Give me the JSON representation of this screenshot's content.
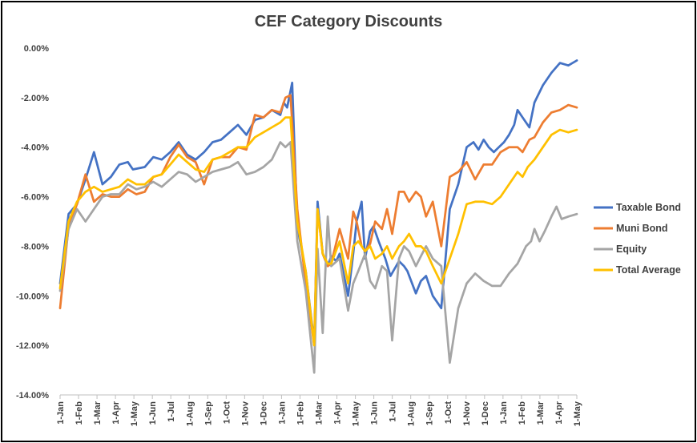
{
  "chart_data": {
    "type": "line",
    "title": "CEF Category Discounts",
    "xlabel": "",
    "ylabel": "",
    "ylim": [
      -0.14,
      0.0
    ],
    "y_ticks": [
      "0.00%",
      "-2.00%",
      "-4.00%",
      "-6.00%",
      "-8.00%",
      "-10.00%",
      "-12.00%",
      "-14.00%"
    ],
    "x_tick_labels": [
      "1-Jan",
      "1-Feb",
      "1-Mar",
      "1-Apr",
      "1-May",
      "1-Jun",
      "1-Jul",
      "1-Aug",
      "1-Sep",
      "1-Oct",
      "1-Nov",
      "1-Dec",
      "1-Jan",
      "1-Feb",
      "1-Mar",
      "1-Apr",
      "1-May",
      "1-Jun",
      "1-Jul",
      "1-Aug",
      "1-Sep",
      "1-Oct",
      "1-Nov",
      "1-Dec",
      "1-Jan",
      "1-Feb",
      "1-Mar",
      "1-Apr",
      "1-May"
    ],
    "grid": false,
    "legend_position": "right",
    "series": [
      {
        "name": "Taxable Bond",
        "color": "#4472C4",
        "points": [
          [
            0,
            -0.095
          ],
          [
            0.5,
            -0.067
          ],
          [
            1,
            -0.063
          ],
          [
            1.5,
            -0.053
          ],
          [
            2,
            -0.042
          ],
          [
            2.5,
            -0.055
          ],
          [
            3,
            -0.052
          ],
          [
            3.5,
            -0.047
          ],
          [
            4,
            -0.046
          ],
          [
            4.3,
            -0.049
          ],
          [
            5,
            -0.048
          ],
          [
            5.5,
            -0.044
          ],
          [
            6,
            -0.045
          ],
          [
            6.5,
            -0.042
          ],
          [
            7,
            -0.038
          ],
          [
            7.5,
            -0.043
          ],
          [
            8,
            -0.045
          ],
          [
            8.5,
            -0.042
          ],
          [
            9,
            -0.038
          ],
          [
            9.5,
            -0.037
          ],
          [
            10,
            -0.034
          ],
          [
            10.5,
            -0.031
          ],
          [
            11,
            -0.035
          ],
          [
            11.5,
            -0.029
          ],
          [
            12,
            -0.028
          ],
          [
            12.5,
            -0.025
          ],
          [
            13,
            -0.027
          ],
          [
            13.2,
            -0.022
          ],
          [
            13.4,
            -0.024
          ],
          [
            13.7,
            -0.014
          ],
          [
            14,
            -0.072
          ],
          [
            14.5,
            -0.09
          ],
          [
            15,
            -0.119
          ],
          [
            15.2,
            -0.062
          ],
          [
            15.5,
            -0.083
          ],
          [
            15.8,
            -0.088
          ],
          [
            16,
            -0.084
          ],
          [
            16.3,
            -0.086
          ],
          [
            16.5,
            -0.083
          ],
          [
            17,
            -0.1
          ],
          [
            17.3,
            -0.083
          ],
          [
            17.5,
            -0.07
          ],
          [
            17.8,
            -0.062
          ],
          [
            18,
            -0.085
          ],
          [
            18.3,
            -0.074
          ],
          [
            18.5,
            -0.072
          ],
          [
            18.8,
            -0.078
          ],
          [
            19.2,
            -0.085
          ],
          [
            19.5,
            -0.092
          ],
          [
            20,
            -0.086
          ],
          [
            20.3,
            -0.088
          ],
          [
            20.5,
            -0.09
          ],
          [
            21,
            -0.099
          ],
          [
            21.3,
            -0.094
          ],
          [
            21.6,
            -0.092
          ],
          [
            22,
            -0.1
          ],
          [
            22.5,
            -0.105
          ],
          [
            23,
            -0.065
          ],
          [
            23.5,
            -0.055
          ],
          [
            24,
            -0.04
          ],
          [
            24.4,
            -0.038
          ],
          [
            24.7,
            -0.041
          ],
          [
            25,
            -0.037
          ],
          [
            25.3,
            -0.04
          ],
          [
            25.6,
            -0.042
          ],
          [
            25.9,
            -0.04
          ],
          [
            26.2,
            -0.038
          ],
          [
            26.5,
            -0.035
          ],
          [
            26.8,
            -0.031
          ],
          [
            27,
            -0.025
          ],
          [
            27.3,
            -0.028
          ],
          [
            27.7,
            -0.032
          ],
          [
            28,
            -0.022
          ],
          [
            28.5,
            -0.015
          ],
          [
            29,
            -0.01
          ],
          [
            29.5,
            -0.006
          ],
          [
            30,
            -0.007
          ],
          [
            30.5,
            -0.005
          ]
        ]
      },
      {
        "name": "Muni Bond",
        "color": "#ED7D31",
        "points": [
          [
            0,
            -0.105
          ],
          [
            0.5,
            -0.072
          ],
          [
            1,
            -0.063
          ],
          [
            1.5,
            -0.051
          ],
          [
            2,
            -0.062
          ],
          [
            2.5,
            -0.059
          ],
          [
            3,
            -0.06
          ],
          [
            3.5,
            -0.06
          ],
          [
            4,
            -0.057
          ],
          [
            4.5,
            -0.059
          ],
          [
            5,
            -0.058
          ],
          [
            5.5,
            -0.052
          ],
          [
            6,
            -0.051
          ],
          [
            6.5,
            -0.044
          ],
          [
            7,
            -0.039
          ],
          [
            7.5,
            -0.044
          ],
          [
            8,
            -0.046
          ],
          [
            8.5,
            -0.055
          ],
          [
            9,
            -0.045
          ],
          [
            9.5,
            -0.044
          ],
          [
            10,
            -0.044
          ],
          [
            10.5,
            -0.04
          ],
          [
            11,
            -0.041
          ],
          [
            11.5,
            -0.027
          ],
          [
            12,
            -0.028
          ],
          [
            12.5,
            -0.025
          ],
          [
            13,
            -0.026
          ],
          [
            13.3,
            -0.02
          ],
          [
            13.6,
            -0.019
          ],
          [
            14,
            -0.065
          ],
          [
            14.5,
            -0.095
          ],
          [
            15,
            -0.12
          ],
          [
            15.2,
            -0.065
          ],
          [
            15.5,
            -0.083
          ],
          [
            15.8,
            -0.088
          ],
          [
            16,
            -0.087
          ],
          [
            16.5,
            -0.073
          ],
          [
            17,
            -0.085
          ],
          [
            17.3,
            -0.066
          ],
          [
            17.5,
            -0.07
          ],
          [
            17.8,
            -0.08
          ],
          [
            18,
            -0.082
          ],
          [
            18.3,
            -0.079
          ],
          [
            18.6,
            -0.07
          ],
          [
            19,
            -0.073
          ],
          [
            19.3,
            -0.065
          ],
          [
            19.6,
            -0.075
          ],
          [
            20,
            -0.058
          ],
          [
            20.3,
            -0.058
          ],
          [
            20.6,
            -0.062
          ],
          [
            21,
            -0.058
          ],
          [
            21.3,
            -0.06
          ],
          [
            21.6,
            -0.068
          ],
          [
            22,
            -0.062
          ],
          [
            22.5,
            -0.08
          ],
          [
            23,
            -0.052
          ],
          [
            23.5,
            -0.05
          ],
          [
            24,
            -0.046
          ],
          [
            24.5,
            -0.053
          ],
          [
            25,
            -0.047
          ],
          [
            25.5,
            -0.047
          ],
          [
            26,
            -0.042
          ],
          [
            26.5,
            -0.04
          ],
          [
            27,
            -0.04
          ],
          [
            27.3,
            -0.042
          ],
          [
            27.7,
            -0.037
          ],
          [
            28,
            -0.036
          ],
          [
            28.5,
            -0.03
          ],
          [
            29,
            -0.026
          ],
          [
            29.5,
            -0.025
          ],
          [
            30,
            -0.023
          ],
          [
            30.5,
            -0.024
          ]
        ]
      },
      {
        "name": "Equity",
        "color": "#A5A5A5",
        "points": [
          [
            0,
            -0.098
          ],
          [
            0.5,
            -0.073
          ],
          [
            1,
            -0.065
          ],
          [
            1.5,
            -0.07
          ],
          [
            2,
            -0.065
          ],
          [
            2.5,
            -0.06
          ],
          [
            3,
            -0.059
          ],
          [
            3.5,
            -0.059
          ],
          [
            4,
            -0.055
          ],
          [
            4.5,
            -0.057
          ],
          [
            5,
            -0.056
          ],
          [
            5.5,
            -0.054
          ],
          [
            6,
            -0.056
          ],
          [
            6.5,
            -0.053
          ],
          [
            7,
            -0.05
          ],
          [
            7.5,
            -0.051
          ],
          [
            8,
            -0.054
          ],
          [
            8.5,
            -0.052
          ],
          [
            9,
            -0.05
          ],
          [
            9.5,
            -0.049
          ],
          [
            10,
            -0.048
          ],
          [
            10.5,
            -0.046
          ],
          [
            11,
            -0.051
          ],
          [
            11.5,
            -0.05
          ],
          [
            12,
            -0.048
          ],
          [
            12.5,
            -0.045
          ],
          [
            13,
            -0.038
          ],
          [
            13.3,
            -0.04
          ],
          [
            13.6,
            -0.038
          ],
          [
            14,
            -0.078
          ],
          [
            14.5,
            -0.098
          ],
          [
            15,
            -0.131
          ],
          [
            15.2,
            -0.081
          ],
          [
            15.5,
            -0.115
          ],
          [
            15.8,
            -0.068
          ],
          [
            16,
            -0.088
          ],
          [
            16.5,
            -0.085
          ],
          [
            17,
            -0.106
          ],
          [
            17.3,
            -0.095
          ],
          [
            17.6,
            -0.09
          ],
          [
            18,
            -0.083
          ],
          [
            18.3,
            -0.094
          ],
          [
            18.6,
            -0.097
          ],
          [
            19,
            -0.088
          ],
          [
            19.3,
            -0.09
          ],
          [
            19.6,
            -0.118
          ],
          [
            20,
            -0.085
          ],
          [
            20.3,
            -0.08
          ],
          [
            20.6,
            -0.082
          ],
          [
            21,
            -0.088
          ],
          [
            21.3,
            -0.084
          ],
          [
            21.6,
            -0.08
          ],
          [
            22,
            -0.085
          ],
          [
            22.5,
            -0.088
          ],
          [
            23,
            -0.127
          ],
          [
            23.5,
            -0.105
          ],
          [
            24,
            -0.095
          ],
          [
            24.5,
            -0.091
          ],
          [
            25,
            -0.094
          ],
          [
            25.5,
            -0.096
          ],
          [
            26,
            -0.096
          ],
          [
            26.5,
            -0.091
          ],
          [
            27,
            -0.087
          ],
          [
            27.5,
            -0.08
          ],
          [
            27.8,
            -0.078
          ],
          [
            28,
            -0.073
          ],
          [
            28.3,
            -0.078
          ],
          [
            28.6,
            -0.074
          ],
          [
            29,
            -0.068
          ],
          [
            29.3,
            -0.064
          ],
          [
            29.6,
            -0.069
          ],
          [
            30,
            -0.068
          ],
          [
            30.5,
            -0.067
          ]
        ]
      },
      {
        "name": "Total Average",
        "color": "#FFC000",
        "points": [
          [
            0,
            -0.097
          ],
          [
            0.5,
            -0.07
          ],
          [
            1,
            -0.062
          ],
          [
            1.5,
            -0.058
          ],
          [
            2,
            -0.056
          ],
          [
            2.5,
            -0.058
          ],
          [
            3,
            -0.057
          ],
          [
            3.5,
            -0.056
          ],
          [
            4,
            -0.053
          ],
          [
            4.5,
            -0.055
          ],
          [
            5,
            -0.055
          ],
          [
            5.5,
            -0.052
          ],
          [
            6,
            -0.051
          ],
          [
            6.5,
            -0.047
          ],
          [
            7,
            -0.043
          ],
          [
            7.5,
            -0.046
          ],
          [
            8,
            -0.049
          ],
          [
            8.5,
            -0.05
          ],
          [
            9,
            -0.045
          ],
          [
            9.5,
            -0.044
          ],
          [
            10,
            -0.042
          ],
          [
            10.5,
            -0.04
          ],
          [
            11,
            -0.04
          ],
          [
            11.5,
            -0.036
          ],
          [
            12,
            -0.034
          ],
          [
            12.5,
            -0.032
          ],
          [
            13,
            -0.03
          ],
          [
            13.3,
            -0.028
          ],
          [
            13.6,
            -0.028
          ],
          [
            14,
            -0.07
          ],
          [
            14.5,
            -0.09
          ],
          [
            15,
            -0.12
          ],
          [
            15.2,
            -0.065
          ],
          [
            15.5,
            -0.083
          ],
          [
            15.8,
            -0.087
          ],
          [
            16,
            -0.087
          ],
          [
            16.5,
            -0.078
          ],
          [
            17,
            -0.095
          ],
          [
            17.3,
            -0.08
          ],
          [
            17.6,
            -0.078
          ],
          [
            18,
            -0.082
          ],
          [
            18.3,
            -0.08
          ],
          [
            18.6,
            -0.085
          ],
          [
            19,
            -0.083
          ],
          [
            19.3,
            -0.08
          ],
          [
            19.6,
            -0.085
          ],
          [
            20,
            -0.08
          ],
          [
            20.3,
            -0.078
          ],
          [
            20.6,
            -0.075
          ],
          [
            21,
            -0.08
          ],
          [
            21.3,
            -0.08
          ],
          [
            21.6,
            -0.082
          ],
          [
            22,
            -0.088
          ],
          [
            22.5,
            -0.095
          ],
          [
            23,
            -0.085
          ],
          [
            23.5,
            -0.075
          ],
          [
            24,
            -0.063
          ],
          [
            24.5,
            -0.062
          ],
          [
            25,
            -0.062
          ],
          [
            25.5,
            -0.063
          ],
          [
            26,
            -0.06
          ],
          [
            26.5,
            -0.055
          ],
          [
            27,
            -0.05
          ],
          [
            27.3,
            -0.052
          ],
          [
            27.6,
            -0.048
          ],
          [
            28,
            -0.045
          ],
          [
            28.5,
            -0.04
          ],
          [
            29,
            -0.035
          ],
          [
            29.5,
            -0.033
          ],
          [
            30,
            -0.034
          ],
          [
            30.5,
            -0.033
          ]
        ]
      }
    ]
  }
}
